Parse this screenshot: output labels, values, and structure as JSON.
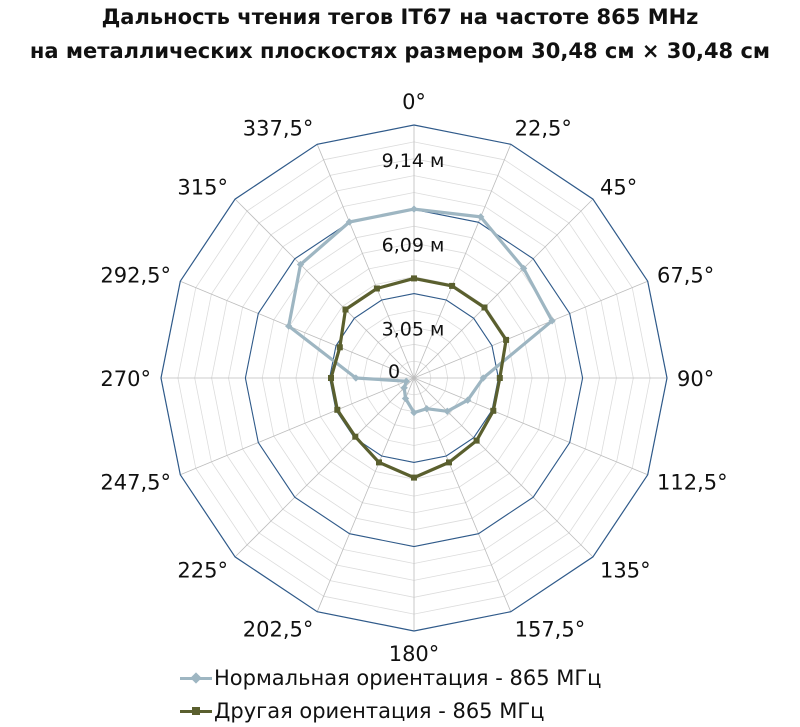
{
  "chart_data": {
    "type": "radar",
    "title_line1": "Дальность чтения тегов IT67 на частоте 865 MHz",
    "title_line2": "на металлических плоскостях размером 30,48 см × 30,48 см",
    "angles": [
      "0°",
      "22,5°",
      "45°",
      "67,5°",
      "90°",
      "112,5°",
      "135°",
      "157,5°",
      "180°",
      "202,5°",
      "225°",
      "247,5°",
      "270°",
      "292,5°",
      "315°",
      "337,5°"
    ],
    "radial_labels": [
      "0",
      "3,05 м",
      "6,09 м",
      "9,14 м"
    ],
    "rmax": 9.14,
    "major_rings": [
      3.05,
      6.09,
      9.14
    ],
    "minor_rings": 15,
    "series": [
      {
        "name": "Нормальная ориентация - 865 МГц",
        "color": "#9eb6c2",
        "marker": "diamond",
        "values": [
          6.1,
          6.3,
          5.6,
          5.4,
          2.5,
          2.1,
          1.7,
          1.2,
          1.25,
          0.8,
          0.5,
          0.3,
          2.1,
          4.9,
          5.8,
          6.1
        ]
      },
      {
        "name": "Другая ориентация - 865 МГц",
        "color": "#5a5f2e",
        "marker": "square",
        "values": [
          3.6,
          3.6,
          3.6,
          3.6,
          3.1,
          3.1,
          3.2,
          3.3,
          3.6,
          3.3,
          3.0,
          3.0,
          3.0,
          2.9,
          3.5,
          3.5
        ]
      }
    ]
  }
}
